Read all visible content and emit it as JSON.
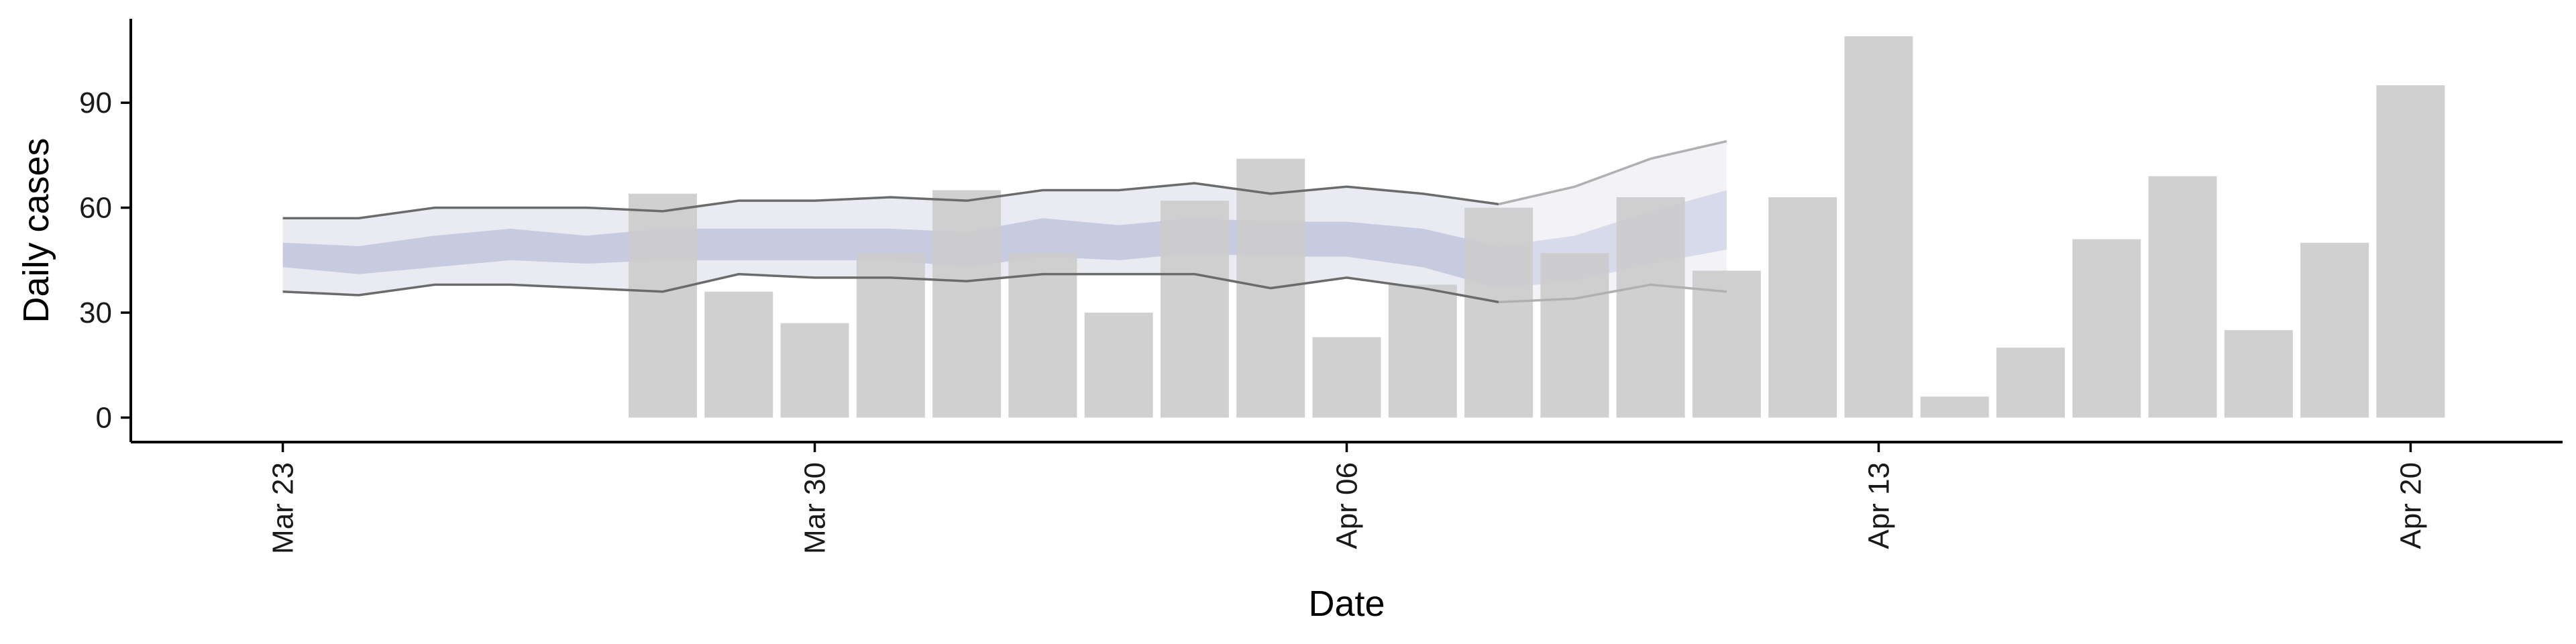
{
  "chart_data": {
    "type": "bar",
    "xlabel": "Date",
    "ylabel": "Daily cases",
    "x_ticks": [
      {
        "date": "2020-03-23",
        "label": "Mar 23"
      },
      {
        "date": "2020-03-30",
        "label": "Mar 30"
      },
      {
        "date": "2020-04-06",
        "label": "Apr 06"
      },
      {
        "date": "2020-04-13",
        "label": "Apr 13"
      },
      {
        "date": "2020-04-20",
        "label": "Apr 20"
      }
    ],
    "y_ticks": [
      0,
      30,
      60,
      90
    ],
    "xlim": [
      "2020-03-21",
      "2020-04-22"
    ],
    "ylim": [
      -7,
      114
    ],
    "grid": false,
    "colors": {
      "bars": "#cccccc",
      "ribbon_outer_estimate": "#e9eaf2",
      "ribbon_inner_estimate": "#c6cbdf",
      "ribbon_outer_forecast": "#f2f2f7",
      "ribbon_inner_forecast": "#d6daea",
      "interval_line_estimate": "#6b6b6b",
      "interval_line_forecast": "#b0b0b0"
    },
    "bars": {
      "dates": [
        "2020-03-28",
        "2020-03-29",
        "2020-03-30",
        "2020-03-31",
        "2020-04-01",
        "2020-04-02",
        "2020-04-03",
        "2020-04-04",
        "2020-04-05",
        "2020-04-06",
        "2020-04-07",
        "2020-04-08",
        "2020-04-09",
        "2020-04-10",
        "2020-04-11",
        "2020-04-12",
        "2020-04-13",
        "2020-04-14",
        "2020-04-15",
        "2020-04-16",
        "2020-04-17",
        "2020-04-18",
        "2020-04-19",
        "2020-04-20"
      ],
      "values": [
        64,
        36,
        27,
        47,
        65,
        47,
        30,
        62,
        74,
        23,
        38,
        60,
        47,
        63,
        42,
        63,
        109,
        6,
        20,
        51,
        69,
        25,
        50,
        95
      ]
    },
    "ribbon_estimate": {
      "dates": [
        "2020-03-23",
        "2020-03-24",
        "2020-03-25",
        "2020-03-26",
        "2020-03-27",
        "2020-03-28",
        "2020-03-29",
        "2020-03-30",
        "2020-03-31",
        "2020-04-01",
        "2020-04-02",
        "2020-04-03",
        "2020-04-04",
        "2020-04-05",
        "2020-04-06",
        "2020-04-07",
        "2020-04-08"
      ],
      "outer_upper": [
        57,
        57,
        60,
        60,
        60,
        59,
        62,
        62,
        63,
        62,
        65,
        65,
        67,
        64,
        66,
        64,
        61
      ],
      "outer_lower": [
        36,
        35,
        38,
        38,
        37,
        36,
        41,
        40,
        40,
        39,
        41,
        41,
        41,
        37,
        40,
        37,
        33
      ],
      "inner_upper": [
        50,
        49,
        52,
        54,
        52,
        54,
        54,
        54,
        54,
        53,
        57,
        55,
        57,
        56,
        56,
        54,
        49
      ],
      "inner_lower": [
        43,
        41,
        43,
        45,
        44,
        45,
        45,
        45,
        45,
        43,
        46,
        45,
        47,
        46,
        46,
        43,
        37
      ]
    },
    "ribbon_forecast": {
      "dates": [
        "2020-04-08",
        "2020-04-09",
        "2020-04-10",
        "2020-04-11"
      ],
      "outer_upper": [
        61,
        66,
        74,
        79
      ],
      "outer_lower": [
        33,
        34,
        38,
        36
      ],
      "inner_upper": [
        49,
        52,
        59,
        65
      ],
      "inner_lower": [
        37,
        39,
        44,
        48
      ]
    }
  }
}
